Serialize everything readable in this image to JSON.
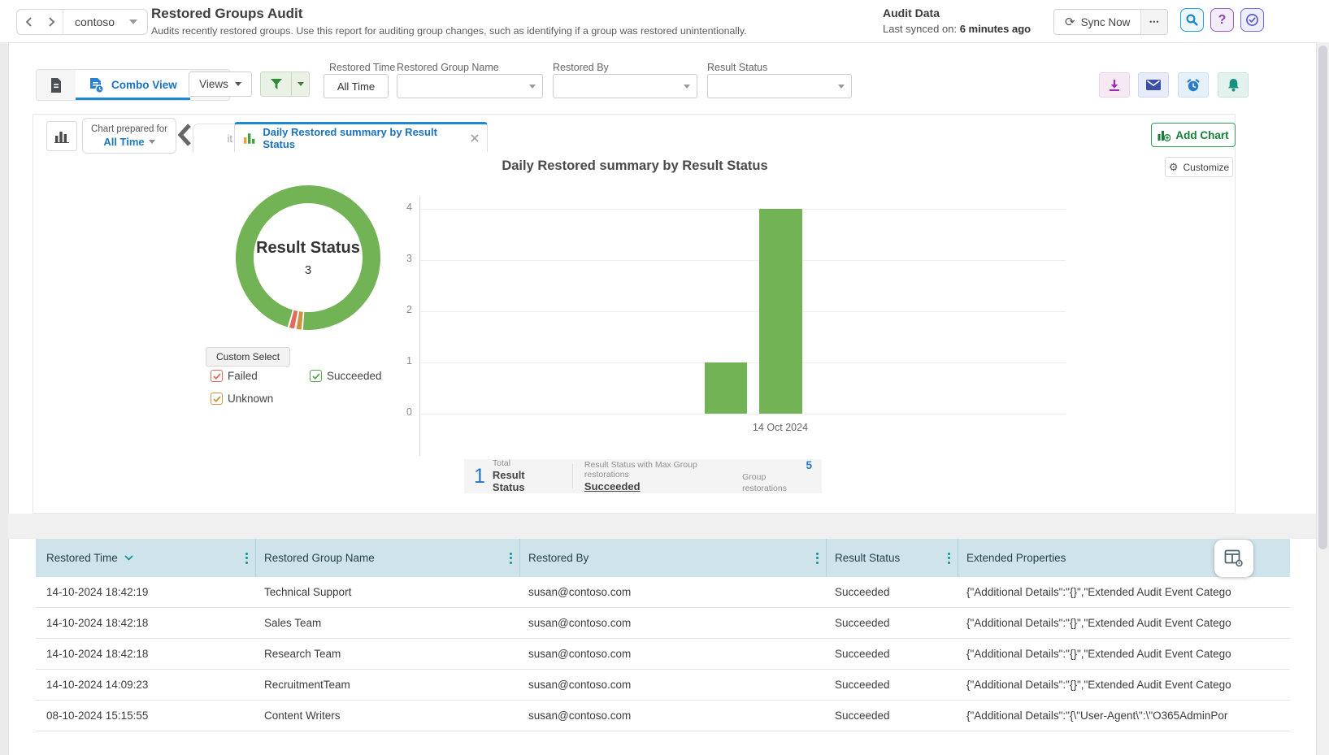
{
  "header": {
    "org": "contoso",
    "title": "Restored Groups Audit",
    "subtitle": "Audits recently restored groups. Use this report for auditing group changes, such as identifying if a group was restored unintentionally.",
    "audit_data_label": "Audit Data",
    "last_synced_label": "Last synced on:",
    "last_synced_value": "6 minutes ago",
    "sync_now_label": "Sync Now",
    "more_label": "•••",
    "sync_glyph": "⟳",
    "help_glyph": "?",
    "accent_blue": "#1e88d2"
  },
  "toolbar": {
    "combo_view_label": "Combo View",
    "views_label": "Views",
    "filters": [
      {
        "label": "Restored Time",
        "value": "All Time"
      },
      {
        "label": "Restored Group Name",
        "value": ""
      },
      {
        "label": "Restored By",
        "value": ""
      },
      {
        "label": "Result Status",
        "value": ""
      }
    ]
  },
  "chart_panel": {
    "prepared_for_label": "Chart prepared for",
    "prepared_for_value": "All Time",
    "prev_tab_partial": "it",
    "tab_title": "Daily Restored summary by Result Status",
    "add_chart_label": "Add Chart",
    "customize_label": "Customize",
    "gear_glyph": "⚙",
    "chart_title": "Daily Restored summary by Result Status",
    "donut_center_label": "Result Status",
    "donut_center_value": "3",
    "custom_select_label": "Custom Select",
    "legend": {
      "items": [
        {
          "label": "Failed",
          "color": "#e2695b"
        },
        {
          "label": "Succeeded",
          "color": "#56a74f"
        },
        {
          "label": "Unknown",
          "color": "#cf9242"
        }
      ]
    },
    "summary": {
      "total_value": "1",
      "total_label_top": "Total",
      "total_label_bottom": "Result Status",
      "max_label": "Result Status with Max Group restorations",
      "max_value": "Succeeded",
      "count_value": "5",
      "count_label": "Group restorations"
    },
    "x_axis_label": "14 Oct 2024"
  },
  "chart_data": [
    {
      "type": "pie",
      "subtype": "donut",
      "title": "Result Status",
      "center_value": 3,
      "slices": [
        {
          "label": "Succeeded",
          "percent": 96.6,
          "color": "#72b356"
        },
        {
          "label": "Failed",
          "percent": 1.7,
          "color": "#e2695b"
        },
        {
          "label": "Unknown",
          "percent": 1.7,
          "color": "#cf9242"
        }
      ],
      "legend_position": "bottom"
    },
    {
      "type": "bar",
      "title": "Daily Restored summary by Result Status",
      "categories": [
        "",
        "14 Oct 2024"
      ],
      "values": [
        1,
        4
      ],
      "color": "#72b356",
      "ylim": [
        0,
        4
      ],
      "yticks": [
        0,
        1,
        2,
        3,
        4
      ],
      "grid": true,
      "xlabel": "",
      "ylabel": ""
    }
  ],
  "table": {
    "columns": [
      "Restored Time",
      "Restored Group Name",
      "Restored By",
      "Result Status",
      "Extended Properties"
    ],
    "rows": [
      [
        "14-10-2024 18:42:19",
        "Technical Support",
        "susan@contoso.com",
        "Succeeded",
        "{\"Additional Details\":\"{}\",\"Extended Audit Event Catego"
      ],
      [
        "14-10-2024 18:42:18",
        "Sales Team",
        "susan@contoso.com",
        "Succeeded",
        "{\"Additional Details\":\"{}\",\"Extended Audit Event Catego"
      ],
      [
        "14-10-2024 18:42:18",
        "Research Team",
        "susan@contoso.com",
        "Succeeded",
        "{\"Additional Details\":\"{}\",\"Extended Audit Event Catego"
      ],
      [
        "14-10-2024 14:09:23",
        "RecruitmentTeam",
        "susan@contoso.com",
        "Succeeded",
        "{\"Additional Details\":\"{}\",\"Extended Audit Event Catego"
      ],
      [
        "08-10-2024 15:15:55",
        "Content Writers",
        "susan@contoso.com",
        "Succeeded",
        "{\"Additional Details\":\"{\\\"User-Agent\\\":\\\"O365AdminPor"
      ]
    ]
  }
}
